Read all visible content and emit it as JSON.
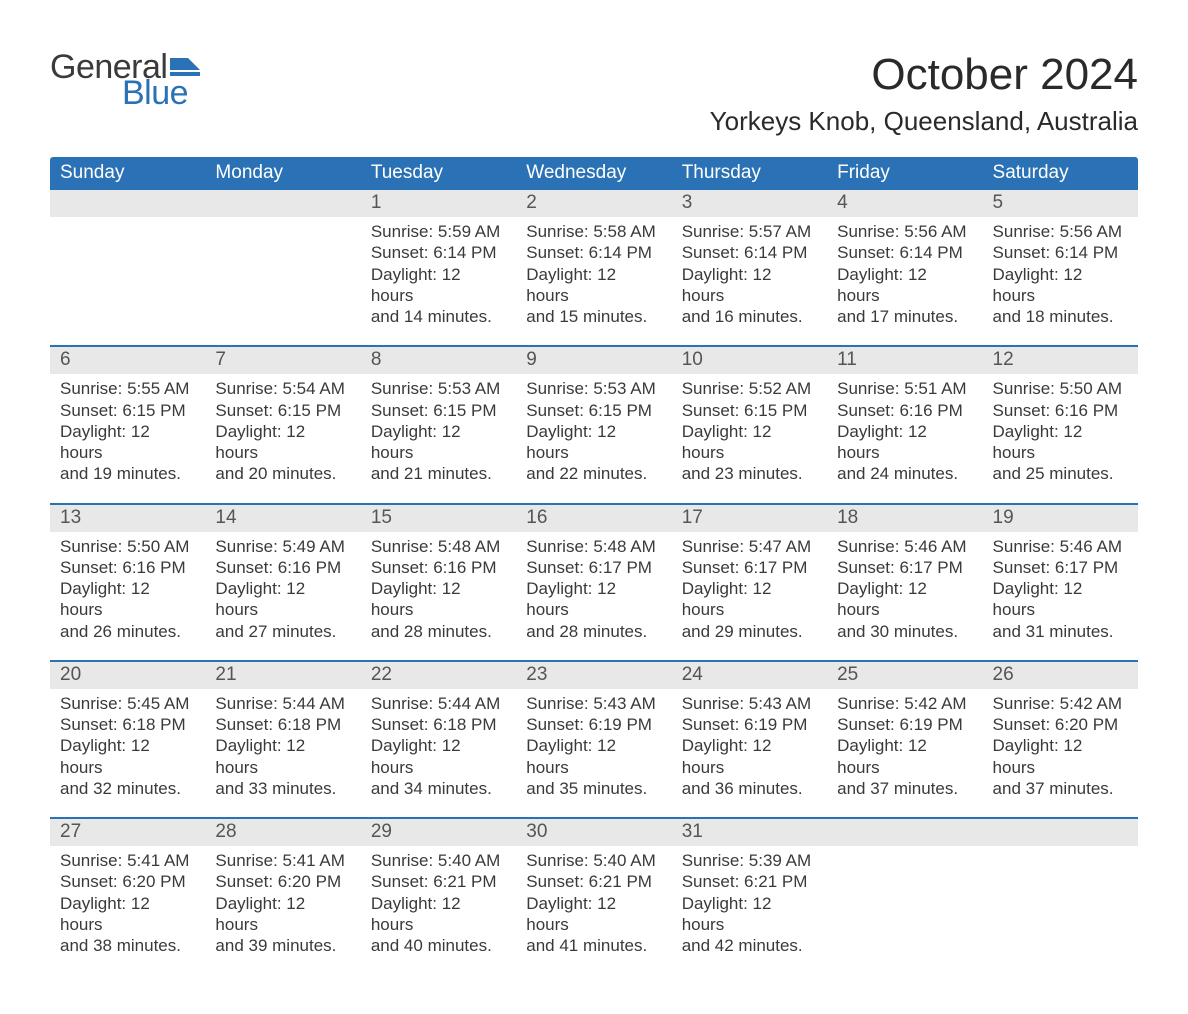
{
  "logo": {
    "word1": "General",
    "word2": "Blue",
    "flag_color": "#2a72b5"
  },
  "title": "October 2024",
  "location": "Yorkeys Knob, Queensland, Australia",
  "colors": {
    "header_bg": "#2a72b5",
    "header_text": "#ffffff",
    "daynum_bg": "#e8e8e8",
    "week_border": "#2a72b5",
    "body_text": "#3a3a3a",
    "page_bg": "#ffffff"
  },
  "daysOfWeek": [
    "Sunday",
    "Monday",
    "Tuesday",
    "Wednesday",
    "Thursday",
    "Friday",
    "Saturday"
  ],
  "labels": {
    "sunrise": "Sunrise:",
    "sunset": "Sunset:",
    "daylight_prefix": "Daylight:",
    "hours_word": "hours",
    "and_word": "and",
    "minutes_word": "minutes."
  },
  "weeks": [
    [
      null,
      null,
      {
        "n": 1,
        "sunrise": "5:59 AM",
        "sunset": "6:14 PM",
        "dl_h": 12,
        "dl_m": 14
      },
      {
        "n": 2,
        "sunrise": "5:58 AM",
        "sunset": "6:14 PM",
        "dl_h": 12,
        "dl_m": 15
      },
      {
        "n": 3,
        "sunrise": "5:57 AM",
        "sunset": "6:14 PM",
        "dl_h": 12,
        "dl_m": 16
      },
      {
        "n": 4,
        "sunrise": "5:56 AM",
        "sunset": "6:14 PM",
        "dl_h": 12,
        "dl_m": 17
      },
      {
        "n": 5,
        "sunrise": "5:56 AM",
        "sunset": "6:14 PM",
        "dl_h": 12,
        "dl_m": 18
      }
    ],
    [
      {
        "n": 6,
        "sunrise": "5:55 AM",
        "sunset": "6:15 PM",
        "dl_h": 12,
        "dl_m": 19
      },
      {
        "n": 7,
        "sunrise": "5:54 AM",
        "sunset": "6:15 PM",
        "dl_h": 12,
        "dl_m": 20
      },
      {
        "n": 8,
        "sunrise": "5:53 AM",
        "sunset": "6:15 PM",
        "dl_h": 12,
        "dl_m": 21
      },
      {
        "n": 9,
        "sunrise": "5:53 AM",
        "sunset": "6:15 PM",
        "dl_h": 12,
        "dl_m": 22
      },
      {
        "n": 10,
        "sunrise": "5:52 AM",
        "sunset": "6:15 PM",
        "dl_h": 12,
        "dl_m": 23
      },
      {
        "n": 11,
        "sunrise": "5:51 AM",
        "sunset": "6:16 PM",
        "dl_h": 12,
        "dl_m": 24
      },
      {
        "n": 12,
        "sunrise": "5:50 AM",
        "sunset": "6:16 PM",
        "dl_h": 12,
        "dl_m": 25
      }
    ],
    [
      {
        "n": 13,
        "sunrise": "5:50 AM",
        "sunset": "6:16 PM",
        "dl_h": 12,
        "dl_m": 26
      },
      {
        "n": 14,
        "sunrise": "5:49 AM",
        "sunset": "6:16 PM",
        "dl_h": 12,
        "dl_m": 27
      },
      {
        "n": 15,
        "sunrise": "5:48 AM",
        "sunset": "6:16 PM",
        "dl_h": 12,
        "dl_m": 28
      },
      {
        "n": 16,
        "sunrise": "5:48 AM",
        "sunset": "6:17 PM",
        "dl_h": 12,
        "dl_m": 28
      },
      {
        "n": 17,
        "sunrise": "5:47 AM",
        "sunset": "6:17 PM",
        "dl_h": 12,
        "dl_m": 29
      },
      {
        "n": 18,
        "sunrise": "5:46 AM",
        "sunset": "6:17 PM",
        "dl_h": 12,
        "dl_m": 30
      },
      {
        "n": 19,
        "sunrise": "5:46 AM",
        "sunset": "6:17 PM",
        "dl_h": 12,
        "dl_m": 31
      }
    ],
    [
      {
        "n": 20,
        "sunrise": "5:45 AM",
        "sunset": "6:18 PM",
        "dl_h": 12,
        "dl_m": 32
      },
      {
        "n": 21,
        "sunrise": "5:44 AM",
        "sunset": "6:18 PM",
        "dl_h": 12,
        "dl_m": 33
      },
      {
        "n": 22,
        "sunrise": "5:44 AM",
        "sunset": "6:18 PM",
        "dl_h": 12,
        "dl_m": 34
      },
      {
        "n": 23,
        "sunrise": "5:43 AM",
        "sunset": "6:19 PM",
        "dl_h": 12,
        "dl_m": 35
      },
      {
        "n": 24,
        "sunrise": "5:43 AM",
        "sunset": "6:19 PM",
        "dl_h": 12,
        "dl_m": 36
      },
      {
        "n": 25,
        "sunrise": "5:42 AM",
        "sunset": "6:19 PM",
        "dl_h": 12,
        "dl_m": 37
      },
      {
        "n": 26,
        "sunrise": "5:42 AM",
        "sunset": "6:20 PM",
        "dl_h": 12,
        "dl_m": 37
      }
    ],
    [
      {
        "n": 27,
        "sunrise": "5:41 AM",
        "sunset": "6:20 PM",
        "dl_h": 12,
        "dl_m": 38
      },
      {
        "n": 28,
        "sunrise": "5:41 AM",
        "sunset": "6:20 PM",
        "dl_h": 12,
        "dl_m": 39
      },
      {
        "n": 29,
        "sunrise": "5:40 AM",
        "sunset": "6:21 PM",
        "dl_h": 12,
        "dl_m": 40
      },
      {
        "n": 30,
        "sunrise": "5:40 AM",
        "sunset": "6:21 PM",
        "dl_h": 12,
        "dl_m": 41
      },
      {
        "n": 31,
        "sunrise": "5:39 AM",
        "sunset": "6:21 PM",
        "dl_h": 12,
        "dl_m": 42
      },
      null,
      null
    ]
  ]
}
